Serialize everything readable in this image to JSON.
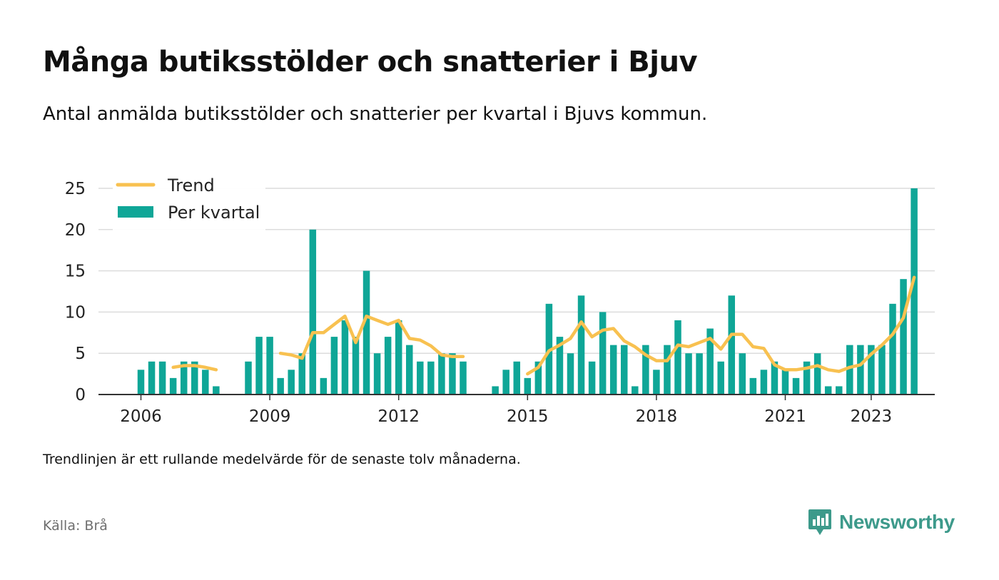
{
  "title": "Många butiksstölder och snatterier i Bjuv",
  "subtitle": "Antal anmälda butiksstölder och snatterier per kvartal i Bjuvs kommun.",
  "note": "Trendlinjen är ett rullande medelvärde för de senaste tolv månaderna.",
  "source": "Källa: Brå",
  "brand": {
    "name": "Newsworthy",
    "icon": "newsworthy-logo-icon",
    "color": "#3d9a8b"
  },
  "chart_data": {
    "type": "bar",
    "title": "",
    "xlabel": "",
    "ylabel": "",
    "ylim": [
      0,
      25
    ],
    "yticks": [
      0,
      5,
      10,
      15,
      20,
      25
    ],
    "grid": true,
    "legend_position": "top-left",
    "start": "2006 Q1",
    "x_tick_labels": [
      {
        "label": "2006",
        "index": 0
      },
      {
        "label": "2009",
        "index": 12
      },
      {
        "label": "2012",
        "index": 24
      },
      {
        "label": "2015",
        "index": 36
      },
      {
        "label": "2018",
        "index": 48
      },
      {
        "label": "2021",
        "index": 60
      },
      {
        "label": "2023",
        "index": 68
      }
    ],
    "series": [
      {
        "name": "Per kvartal",
        "kind": "bar",
        "color": "#0fa697",
        "values": [
          3,
          4,
          4,
          2,
          4,
          4,
          3,
          1,
          null,
          null,
          4,
          7,
          7,
          2,
          3,
          5,
          20,
          2,
          7,
          9,
          7,
          15,
          5,
          7,
          9,
          6,
          4,
          4,
          5,
          5,
          4,
          null,
          null,
          1,
          3,
          4,
          2,
          4,
          11,
          7,
          5,
          12,
          4,
          10,
          6,
          6,
          1,
          6,
          3,
          6,
          9,
          5,
          5,
          8,
          4,
          12,
          5,
          2,
          3,
          4,
          3,
          2,
          4,
          5,
          1,
          1,
          6,
          6,
          6,
          6,
          11,
          14,
          25
        ]
      },
      {
        "name": "Trend",
        "kind": "line",
        "color": "#f8c150",
        "values": [
          null,
          null,
          null,
          3.3,
          3.5,
          3.5,
          3.3,
          3.0,
          null,
          null,
          null,
          null,
          null,
          5.0,
          4.8,
          4.4,
          7.5,
          7.5,
          8.5,
          9.5,
          6.3,
          9.5,
          9.0,
          8.5,
          9.0,
          6.8,
          6.6,
          5.9,
          4.8,
          4.6,
          4.6,
          null,
          null,
          null,
          null,
          null,
          2.5,
          3.3,
          5.3,
          6.0,
          6.8,
          8.8,
          7.0,
          7.8,
          8.0,
          6.5,
          5.8,
          4.8,
          4.1,
          4.1,
          6.0,
          5.8,
          6.3,
          6.8,
          5.5,
          7.3,
          7.3,
          5.8,
          5.6,
          3.6,
          3.0,
          3.0,
          3.2,
          3.5,
          3.0,
          2.8,
          3.3,
          3.6,
          4.9,
          6.0,
          7.3,
          9.3,
          14.2
        ]
      }
    ]
  }
}
